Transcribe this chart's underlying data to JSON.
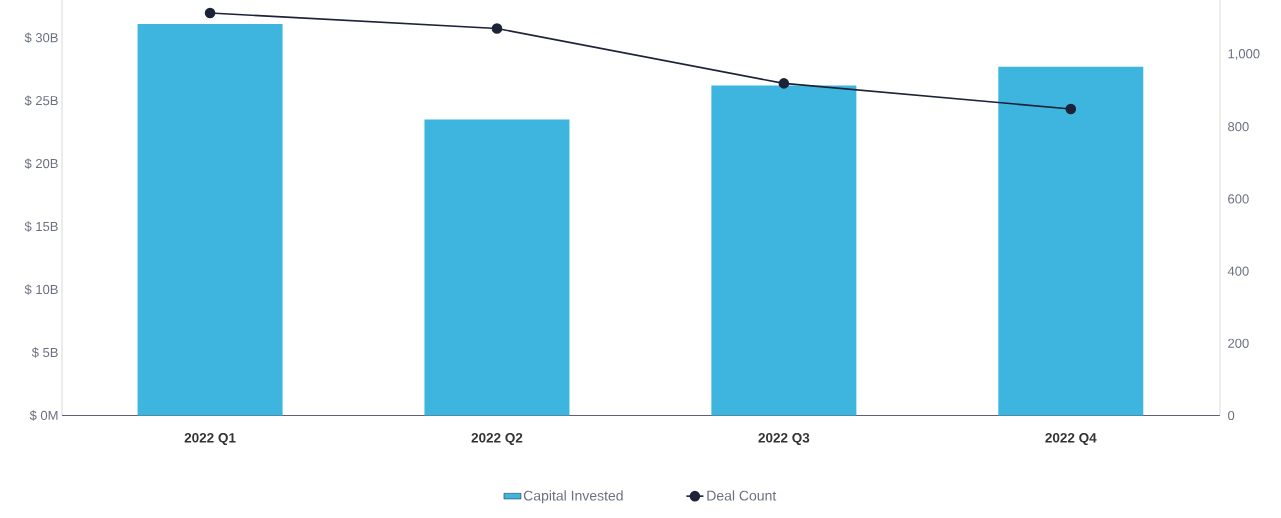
{
  "chart_data": {
    "type": "bar",
    "categories": [
      "2022 Q1",
      "2022 Q2",
      "2022 Q3",
      "2022 Q4"
    ],
    "series": [
      {
        "name": "Capital Invested",
        "color": "#3db5df",
        "values": [
          31.1,
          23.5,
          26.2,
          27.7
        ]
      },
      {
        "name": "Deal Count",
        "type": "line",
        "axis": "y2",
        "color": "#1c2238",
        "marker": "circle",
        "values": [
          1115,
          1072,
          920,
          849
        ]
      }
    ],
    "ylim": [
      0,
      33
    ],
    "yticks": [
      {
        "value": 0,
        "label": "$ 0M"
      },
      {
        "value": 5,
        "label": "$ 5B"
      },
      {
        "value": 10,
        "label": "$ 10B"
      },
      {
        "value": 15,
        "label": "$ 15B"
      },
      {
        "value": 20,
        "label": "$ 20B"
      },
      {
        "value": 25,
        "label": "$ 25B"
      },
      {
        "value": 30,
        "label": "$ 30B"
      }
    ],
    "y2lim": [
      0,
      1151
    ],
    "y2ticks": [
      0,
      200,
      400,
      600,
      800,
      {
        "value": 1000,
        "label": "1,000"
      }
    ],
    "legend": "bottom"
  }
}
